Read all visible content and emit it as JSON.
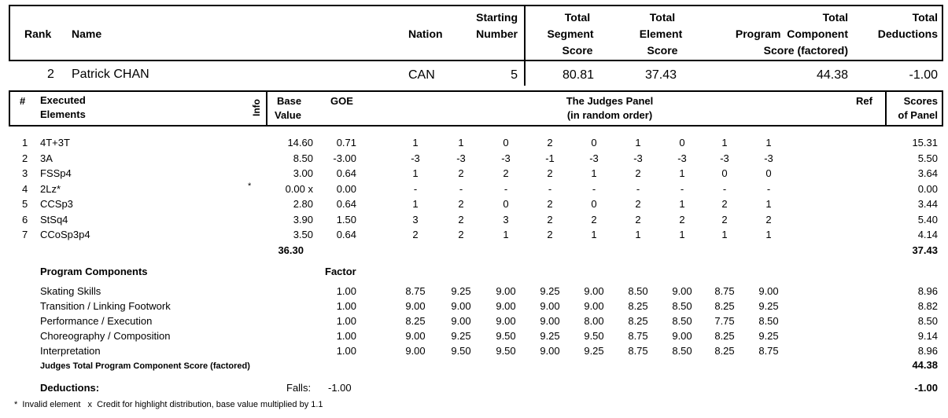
{
  "header": {
    "rank": "Rank",
    "name": "Name",
    "nation": "Nation",
    "starting_number": [
      "Starting",
      "Number"
    ],
    "total_segment_score": [
      "Total",
      "Segment",
      "Score"
    ],
    "total_element_score": [
      "Total",
      "Element",
      "Score"
    ],
    "total_program_component": [
      "Total",
      "Program  Component",
      "Score (factored)"
    ],
    "total_deductions": [
      "Total",
      "Deductions"
    ]
  },
  "skater": {
    "rank": "2",
    "name": "Patrick CHAN",
    "nation": "CAN",
    "starting_number": "5",
    "tss": "80.81",
    "tes": "37.43",
    "pcs": "44.38",
    "deductions": "-1.00"
  },
  "elements_header": {
    "num": "#",
    "executed": [
      "Executed",
      "Elements"
    ],
    "info": "Info",
    "base_value": [
      "Base",
      "Value"
    ],
    "goe": "GOE",
    "panel": [
      "The Judges Panel",
      "(in random order)"
    ],
    "ref": "Ref",
    "scores": [
      "Scores",
      "of Panel"
    ]
  },
  "elements": [
    {
      "num": "1",
      "name": "4T+3T",
      "info": "",
      "base": "14.60",
      "goe": "0.71",
      "judges": [
        "1",
        "1",
        "0",
        "2",
        "0",
        "1",
        "0",
        "1",
        "1"
      ],
      "score": "15.31"
    },
    {
      "num": "2",
      "name": "3A",
      "info": "",
      "base": "8.50",
      "goe": "-3.00",
      "judges": [
        "-3",
        "-3",
        "-3",
        "-1",
        "-3",
        "-3",
        "-3",
        "-3",
        "-3"
      ],
      "score": "5.50"
    },
    {
      "num": "3",
      "name": "FSSp4",
      "info": "",
      "base": "3.00",
      "goe": "0.64",
      "judges": [
        "1",
        "2",
        "2",
        "2",
        "1",
        "2",
        "1",
        "0",
        "0"
      ],
      "score": "3.64"
    },
    {
      "num": "4",
      "name": "2Lz*",
      "info": "*",
      "base": "0.00 x",
      "goe": "0.00",
      "judges": [
        "-",
        "-",
        "-",
        "-",
        "-",
        "-",
        "-",
        "-",
        "-"
      ],
      "score": "0.00"
    },
    {
      "num": "5",
      "name": "CCSp3",
      "info": "",
      "base": "2.80",
      "goe": "0.64",
      "judges": [
        "1",
        "2",
        "0",
        "2",
        "0",
        "2",
        "1",
        "2",
        "1"
      ],
      "score": "3.44"
    },
    {
      "num": "6",
      "name": "StSq4",
      "info": "",
      "base": "3.90",
      "goe": "1.50",
      "judges": [
        "3",
        "2",
        "3",
        "2",
        "2",
        "2",
        "2",
        "2",
        "2"
      ],
      "score": "5.40"
    },
    {
      "num": "7",
      "name": "CCoSp3p4",
      "info": "",
      "base": "3.50",
      "goe": "0.64",
      "judges": [
        "2",
        "2",
        "1",
        "2",
        "1",
        "1",
        "1",
        "1",
        "1"
      ],
      "score": "4.14"
    }
  ],
  "elements_total_base": "36.30",
  "elements_total_score": "37.43",
  "components_title": "Program Components",
  "factor_label": "Factor",
  "components": [
    {
      "name": "Skating Skills",
      "factor": "1.00",
      "judges": [
        "8.75",
        "9.25",
        "9.00",
        "9.25",
        "9.00",
        "8.50",
        "9.00",
        "8.75",
        "9.00"
      ],
      "score": "8.96"
    },
    {
      "name": "Transition / Linking Footwork",
      "factor": "1.00",
      "judges": [
        "9.00",
        "9.00",
        "9.00",
        "9.00",
        "9.00",
        "8.25",
        "8.50",
        "8.25",
        "9.25"
      ],
      "score": "8.82"
    },
    {
      "name": "Performance / Execution",
      "factor": "1.00",
      "judges": [
        "8.25",
        "9.00",
        "9.00",
        "9.00",
        "8.00",
        "8.25",
        "8.50",
        "7.75",
        "8.50"
      ],
      "score": "8.50"
    },
    {
      "name": "Choreography / Composition",
      "factor": "1.00",
      "judges": [
        "9.00",
        "9.25",
        "9.50",
        "9.25",
        "9.50",
        "8.75",
        "9.00",
        "8.25",
        "9.25"
      ],
      "score": "9.14"
    },
    {
      "name": "Interpretation",
      "factor": "1.00",
      "judges": [
        "9.00",
        "9.50",
        "9.50",
        "9.00",
        "9.25",
        "8.75",
        "8.50",
        "8.25",
        "8.75"
      ],
      "score": "8.96"
    }
  ],
  "pcs_total_label": "Judges Total Program Component Score (factored)",
  "pcs_total": "44.38",
  "deductions_label": "Deductions:",
  "falls_label": "Falls:",
  "falls_value": "-1.00",
  "deductions_total": "-1.00",
  "footnote": "*  Invalid element   x  Credit for highlight distribution, base value multiplied by 1.1"
}
